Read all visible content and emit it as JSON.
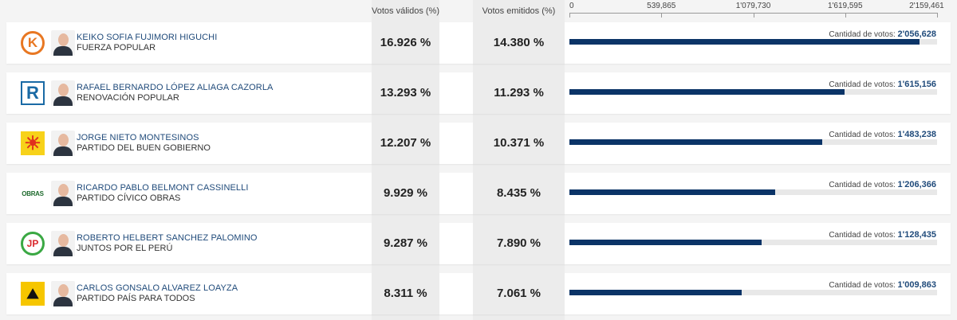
{
  "headers": {
    "valid": "Votos válidos (%)",
    "emitted": "Votos emitidos (%)"
  },
  "axis": {
    "max": 2159461,
    "ticks": [
      "0",
      "539,865",
      "1'079,730",
      "1'619,595",
      "2'159,461"
    ]
  },
  "votes_label": "Cantidad de votos:",
  "colors": {
    "bar": "#0b3467",
    "name": "#1f4a7a"
  },
  "candidates": [
    {
      "name": "KEIKO SOFIA FUJIMORI HIGUCHI",
      "party": "FUERZA POPULAR",
      "valid": "16.926 %",
      "emitted": "14.380 %",
      "votes_text": "2'056,628",
      "votes": 2056628,
      "logo": "K"
    },
    {
      "name": "RAFAEL BERNARDO LÓPEZ ALIAGA CAZORLA",
      "party": "RENOVACIÓN POPULAR",
      "valid": "13.293 %",
      "emitted": "11.293 %",
      "votes_text": "1'615,156",
      "votes": 1615156,
      "logo": "R"
    },
    {
      "name": "JORGE NIETO MONTESINOS",
      "party": "PARTIDO DEL BUEN GOBIERNO",
      "valid": "12.207 %",
      "emitted": "10.371 %",
      "votes_text": "1'483,238",
      "votes": 1483238,
      "logo": "☀"
    },
    {
      "name": "RICARDO PABLO BELMONT CASSINELLI",
      "party": "PARTIDO CÍVICO OBRAS",
      "valid": "9.929 %",
      "emitted": "8.435 %",
      "votes_text": "1'206,366",
      "votes": 1206366,
      "logo": "OBRAS"
    },
    {
      "name": "ROBERTO HELBERT SANCHEZ PALOMINO",
      "party": "JUNTOS POR EL PERÚ",
      "valid": "9.287 %",
      "emitted": "7.890 %",
      "votes_text": "1'128,435",
      "votes": 1128435,
      "logo": "JP"
    },
    {
      "name": "CARLOS GONSALO ALVAREZ LOAYZA",
      "party": "PARTIDO PAÍS PARA TODOS",
      "valid": "8.311 %",
      "emitted": "7.061 %",
      "votes_text": "1'009,863",
      "votes": 1009863,
      "logo": "⛰"
    }
  ]
}
